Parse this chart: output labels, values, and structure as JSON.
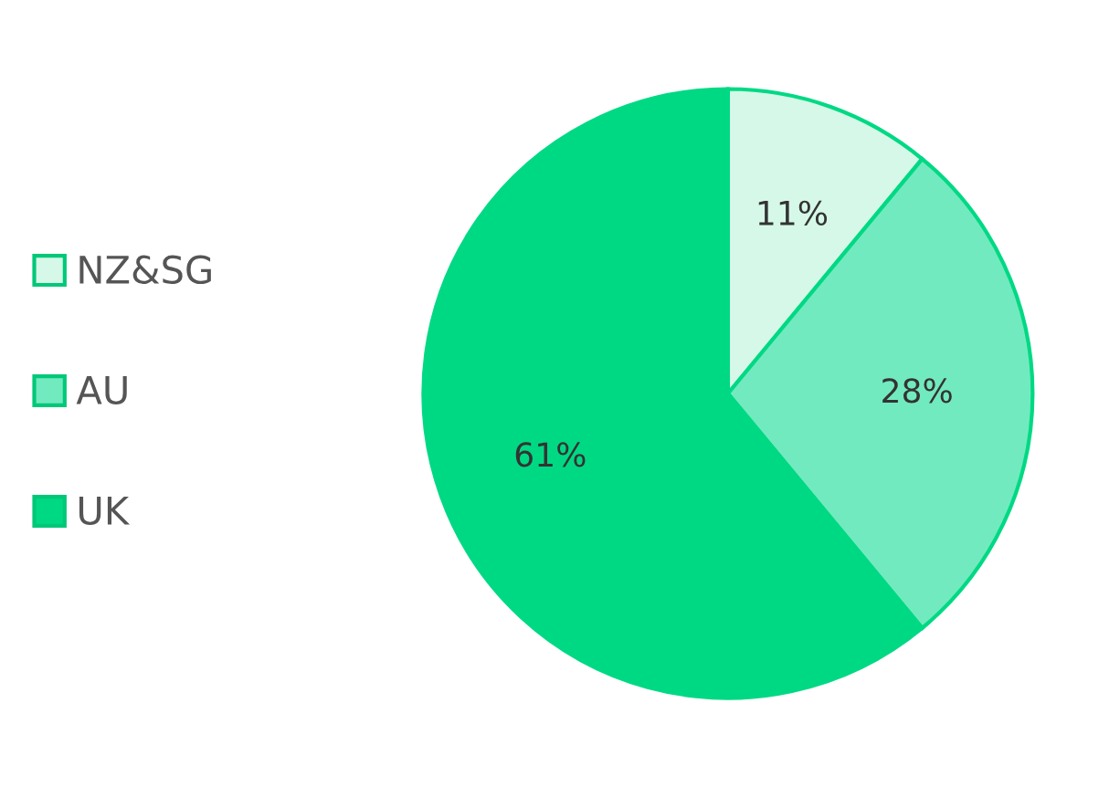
{
  "chart_data": {
    "type": "pie",
    "categories": [
      "NZ&SG",
      "AU",
      "UK"
    ],
    "values": [
      11,
      28,
      61
    ],
    "value_labels": [
      "11%",
      "28%",
      "61%"
    ],
    "colors": [
      "#d6f8e8",
      "#72eabf",
      "#00d984"
    ],
    "legend": "left"
  }
}
